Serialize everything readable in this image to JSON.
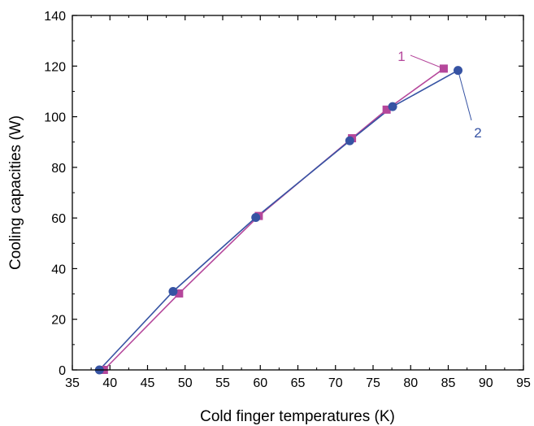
{
  "chart_data": {
    "type": "line",
    "title": "",
    "xlabel": "Cold finger temperatures (K)",
    "ylabel": "Cooling capacities (W)",
    "xlim": [
      35,
      95
    ],
    "ylim": [
      0,
      140
    ],
    "xticks": [
      35,
      40,
      45,
      50,
      55,
      60,
      65,
      70,
      75,
      80,
      85,
      90,
      95
    ],
    "yticks": [
      0,
      20,
      40,
      60,
      80,
      100,
      120,
      140
    ],
    "grid": false,
    "legend": "none",
    "series": [
      {
        "label": "1",
        "marker": "square",
        "color": "#b5479b",
        "points": [
          [
            39.2,
            0
          ],
          [
            49.2,
            30.2
          ],
          [
            59.8,
            60.8
          ],
          [
            72.2,
            91.5
          ],
          [
            76.8,
            102.8
          ],
          [
            84.4,
            119
          ]
        ]
      },
      {
        "label": "2",
        "marker": "circle",
        "color": "#3653a3",
        "points": [
          [
            38.6,
            0
          ],
          [
            48.4,
            31
          ],
          [
            59.4,
            60.2
          ],
          [
            71.9,
            90.5
          ],
          [
            77.6,
            104
          ],
          [
            86.3,
            118.3
          ]
        ]
      }
    ],
    "annotations": [
      {
        "text": "1",
        "series": "1"
      },
      {
        "text": "2",
        "series": "2"
      }
    ]
  }
}
